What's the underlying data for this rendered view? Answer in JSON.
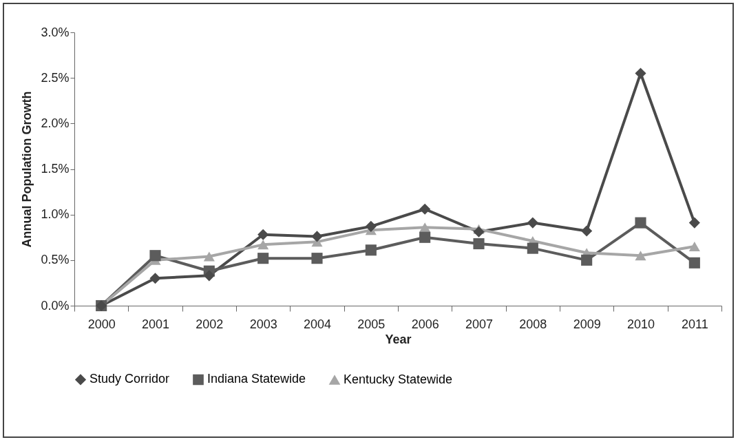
{
  "chart_data": {
    "type": "line",
    "xlabel": "Year",
    "ylabel": "Annual Population Growth",
    "categories": [
      "2000",
      "2001",
      "2002",
      "2003",
      "2004",
      "2005",
      "2006",
      "2007",
      "2008",
      "2009",
      "2010",
      "2011"
    ],
    "series": [
      {
        "name": "Study Corridor",
        "color": "#4a4a4a",
        "marker": "diamond",
        "values": [
          0,
          0.3,
          0.33,
          0.78,
          0.76,
          0.87,
          1.06,
          0.81,
          0.91,
          0.82,
          2.55,
          0.91
        ]
      },
      {
        "name": "Indiana Statewide",
        "color": "#5c5c5c",
        "marker": "square",
        "values": [
          0,
          0.55,
          0.38,
          0.52,
          0.52,
          0.61,
          0.75,
          0.68,
          0.63,
          0.5,
          0.91,
          0.47
        ]
      },
      {
        "name": "Kentucky Statewide",
        "color": "#a6a6a6",
        "marker": "triangle",
        "values": [
          0,
          0.5,
          0.54,
          0.67,
          0.7,
          0.83,
          0.86,
          0.84,
          0.71,
          0.58,
          0.55,
          0.65
        ]
      }
    ],
    "ylim": [
      0,
      3
    ],
    "yticks": [
      {
        "value": 0,
        "label": "0.0%"
      },
      {
        "value": 0.5,
        "label": "0.5%"
      },
      {
        "value": 1,
        "label": "1.0%"
      },
      {
        "value": 1.5,
        "label": "1.5%"
      },
      {
        "value": 2,
        "label": "2.0%"
      },
      {
        "value": 2.5,
        "label": "2.5%"
      },
      {
        "value": 3,
        "label": "3.0%"
      }
    ],
    "grid": false,
    "legend": "bottom",
    "line_style": "solid"
  }
}
